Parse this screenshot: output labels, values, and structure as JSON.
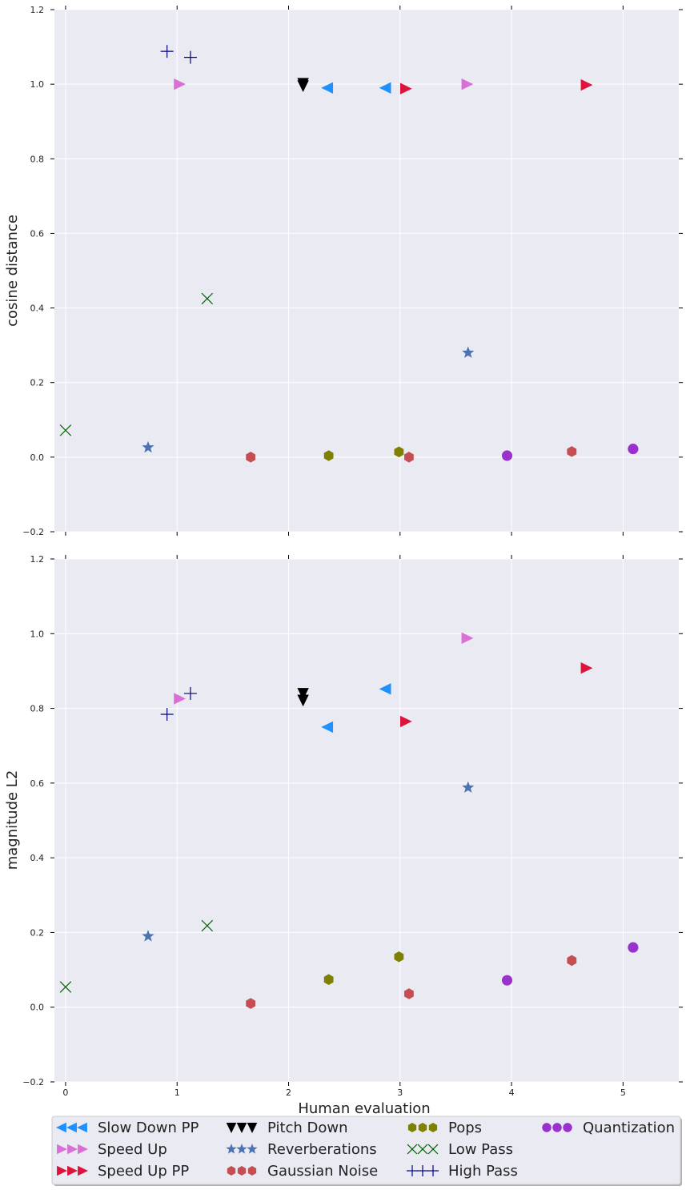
{
  "chart_data": [
    {
      "type": "scatter",
      "panel": "top",
      "ylabel": "cosine distance",
      "xlim": [
        -0.1,
        5.5
      ],
      "ylim": [
        -0.2,
        1.2
      ],
      "xticks": [
        0,
        1,
        2,
        3,
        4,
        5
      ],
      "yticks": [
        -0.2,
        0.0,
        0.2,
        0.4,
        0.6,
        0.8,
        1.0,
        1.2
      ],
      "ytick_labels": [
        "−0.2",
        "0.0",
        "0.2",
        "0.4",
        "0.6",
        "0.8",
        "1.0",
        "1.2"
      ],
      "show_xtick_labels": false,
      "grid": true,
      "series": [
        {
          "name": "Slow Down PP",
          "points": [
            [
              2.35,
              0.99
            ],
            [
              2.87,
              0.99
            ]
          ]
        },
        {
          "name": "Speed Up",
          "points": [
            [
              1.02,
              1.0
            ],
            [
              3.6,
              1.0
            ]
          ]
        },
        {
          "name": "Speed Up PP",
          "points": [
            [
              3.05,
              0.988
            ],
            [
              4.67,
              0.998
            ]
          ]
        },
        {
          "name": "Pitch Down",
          "points": [
            [
              2.13,
              1.002
            ],
            [
              2.13,
              0.996
            ]
          ]
        },
        {
          "name": "Reverberations",
          "points": [
            [
              0.74,
              0.026
            ],
            [
              3.61,
              0.28
            ]
          ]
        },
        {
          "name": "Gaussian Noise",
          "points": [
            [
              1.66,
              0.0
            ],
            [
              3.08,
              0.0
            ],
            [
              4.54,
              0.015
            ]
          ]
        },
        {
          "name": "Pops",
          "points": [
            [
              2.36,
              0.004
            ],
            [
              2.99,
              0.014
            ]
          ]
        },
        {
          "name": "Low Pass",
          "points": [
            [
              0.0,
              0.072
            ],
            [
              1.27,
              0.425
            ]
          ]
        },
        {
          "name": "High Pass",
          "points": [
            [
              0.91,
              1.088
            ],
            [
              1.12,
              1.072
            ]
          ]
        },
        {
          "name": "Quantization",
          "points": [
            [
              3.96,
              0.004
            ],
            [
              5.09,
              0.022
            ]
          ]
        }
      ]
    },
    {
      "type": "scatter",
      "panel": "bottom",
      "xlabel": "Human evaluation",
      "ylabel": "magnitude L2",
      "xlim": [
        -0.1,
        5.5
      ],
      "ylim": [
        -0.2,
        1.2
      ],
      "xticks": [
        0,
        1,
        2,
        3,
        4,
        5
      ],
      "yticks": [
        -0.2,
        0.0,
        0.2,
        0.4,
        0.6,
        0.8,
        1.0,
        1.2
      ],
      "ytick_labels": [
        "−0.2",
        "0.0",
        "0.2",
        "0.4",
        "0.6",
        "0.8",
        "1.0",
        "1.2"
      ],
      "show_xtick_labels": true,
      "grid": true,
      "series": [
        {
          "name": "Slow Down PP",
          "points": [
            [
              2.35,
              0.75
            ],
            [
              2.87,
              0.852
            ]
          ]
        },
        {
          "name": "Speed Up",
          "points": [
            [
              1.02,
              0.826
            ],
            [
              3.6,
              0.988
            ]
          ]
        },
        {
          "name": "Speed Up PP",
          "points": [
            [
              3.05,
              0.765
            ],
            [
              4.67,
              0.908
            ]
          ]
        },
        {
          "name": "Pitch Down",
          "points": [
            [
              2.13,
              0.84
            ],
            [
              2.13,
              0.822
            ]
          ]
        },
        {
          "name": "Reverberations",
          "points": [
            [
              0.74,
              0.19
            ],
            [
              3.61,
              0.588
            ]
          ]
        },
        {
          "name": "Gaussian Noise",
          "points": [
            [
              1.66,
              0.01
            ],
            [
              3.08,
              0.036
            ],
            [
              4.54,
              0.125
            ]
          ]
        },
        {
          "name": "Pops",
          "points": [
            [
              2.36,
              0.074
            ],
            [
              2.99,
              0.135
            ]
          ]
        },
        {
          "name": "Low Pass",
          "points": [
            [
              0.0,
              0.054
            ],
            [
              1.27,
              0.218
            ]
          ]
        },
        {
          "name": "High Pass",
          "points": [
            [
              0.91,
              0.784
            ],
            [
              1.12,
              0.84
            ]
          ]
        },
        {
          "name": "Quantization",
          "points": [
            [
              3.96,
              0.072
            ],
            [
              5.09,
              0.16
            ]
          ]
        }
      ]
    }
  ],
  "legend": {
    "placement": "bottom",
    "columns": 4,
    "entries": [
      {
        "name": "Slow Down PP",
        "marker": "triangle-left-icon",
        "color": "#1e90ff"
      },
      {
        "name": "Speed Up",
        "marker": "triangle-right-icon",
        "color": "#da70d6"
      },
      {
        "name": "Speed Up PP",
        "marker": "triangle-right-icon",
        "color": "#dc143c"
      },
      {
        "name": "Pitch Down",
        "marker": "triangle-down-icon",
        "color": "#000000"
      },
      {
        "name": "Reverberations",
        "marker": "star-icon",
        "color": "#4c72b0"
      },
      {
        "name": "Gaussian Noise",
        "marker": "hexagon-icon",
        "color": "#c44e52"
      },
      {
        "name": "Pops",
        "marker": "hexagon-icon",
        "color": "#808000"
      },
      {
        "name": "Low Pass",
        "marker": "x-icon",
        "color": "#006400"
      },
      {
        "name": "High Pass",
        "marker": "plus-icon",
        "color": "#000080"
      },
      {
        "name": "Quantization",
        "marker": "circle-icon",
        "color": "#9932cc"
      }
    ]
  },
  "colors": {
    "plot_background": "#eaeaf2",
    "grid": "#ffffff",
    "legend_background": "#eaeaf2"
  }
}
